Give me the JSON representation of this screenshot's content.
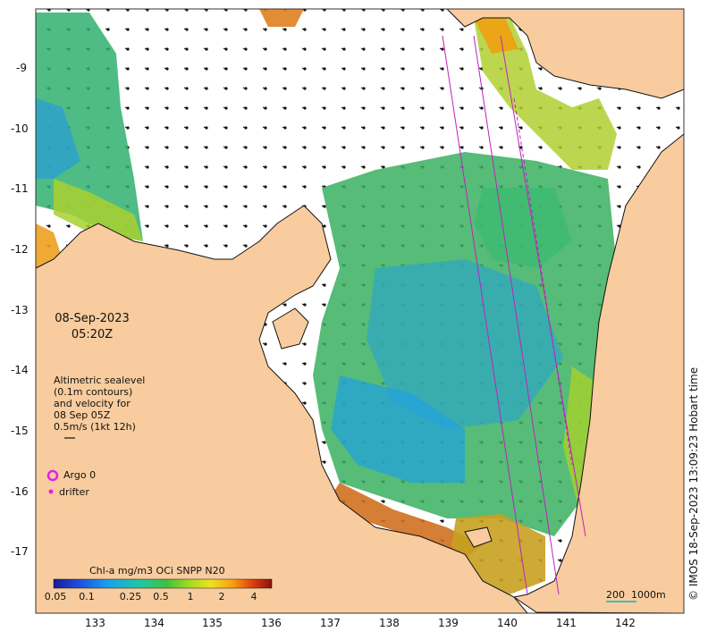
{
  "map": {
    "date_line1": "08-Sep-2023",
    "date_line2": "05:20Z",
    "altimetry_note": [
      "Altimetric sealevel",
      "(0.1m contours)",
      "and velocity for",
      "08 Sep 05Z",
      "0.5m/s (1kt 12h)"
    ],
    "legend": {
      "argo": "Argo 0",
      "drifter": "drifter"
    },
    "credit": "© IMOS 18-Sep-2023 13:09:23 Hobart time",
    "scale_label": "200  1000m",
    "colorbar": {
      "title": "Chl-a mg/m3 OCi SNPP N20",
      "ticks": [
        "0.05",
        "0.1",
        "0.25",
        "0.5",
        "1",
        "2",
        "4"
      ]
    },
    "lon_labels": [
      "133",
      "134",
      "135",
      "136",
      "137",
      "138",
      "139",
      "140",
      "141",
      "142"
    ],
    "lat_labels": [
      "-9",
      "-10",
      "-11",
      "-12",
      "-13",
      "-14",
      "-15",
      "-16",
      "-17"
    ],
    "colors": {
      "land": "#f8cc9e",
      "ocean": "#ffffff",
      "argo": "#e020e0",
      "track": "#c020c0",
      "scale": "#40c0b0"
    }
  }
}
